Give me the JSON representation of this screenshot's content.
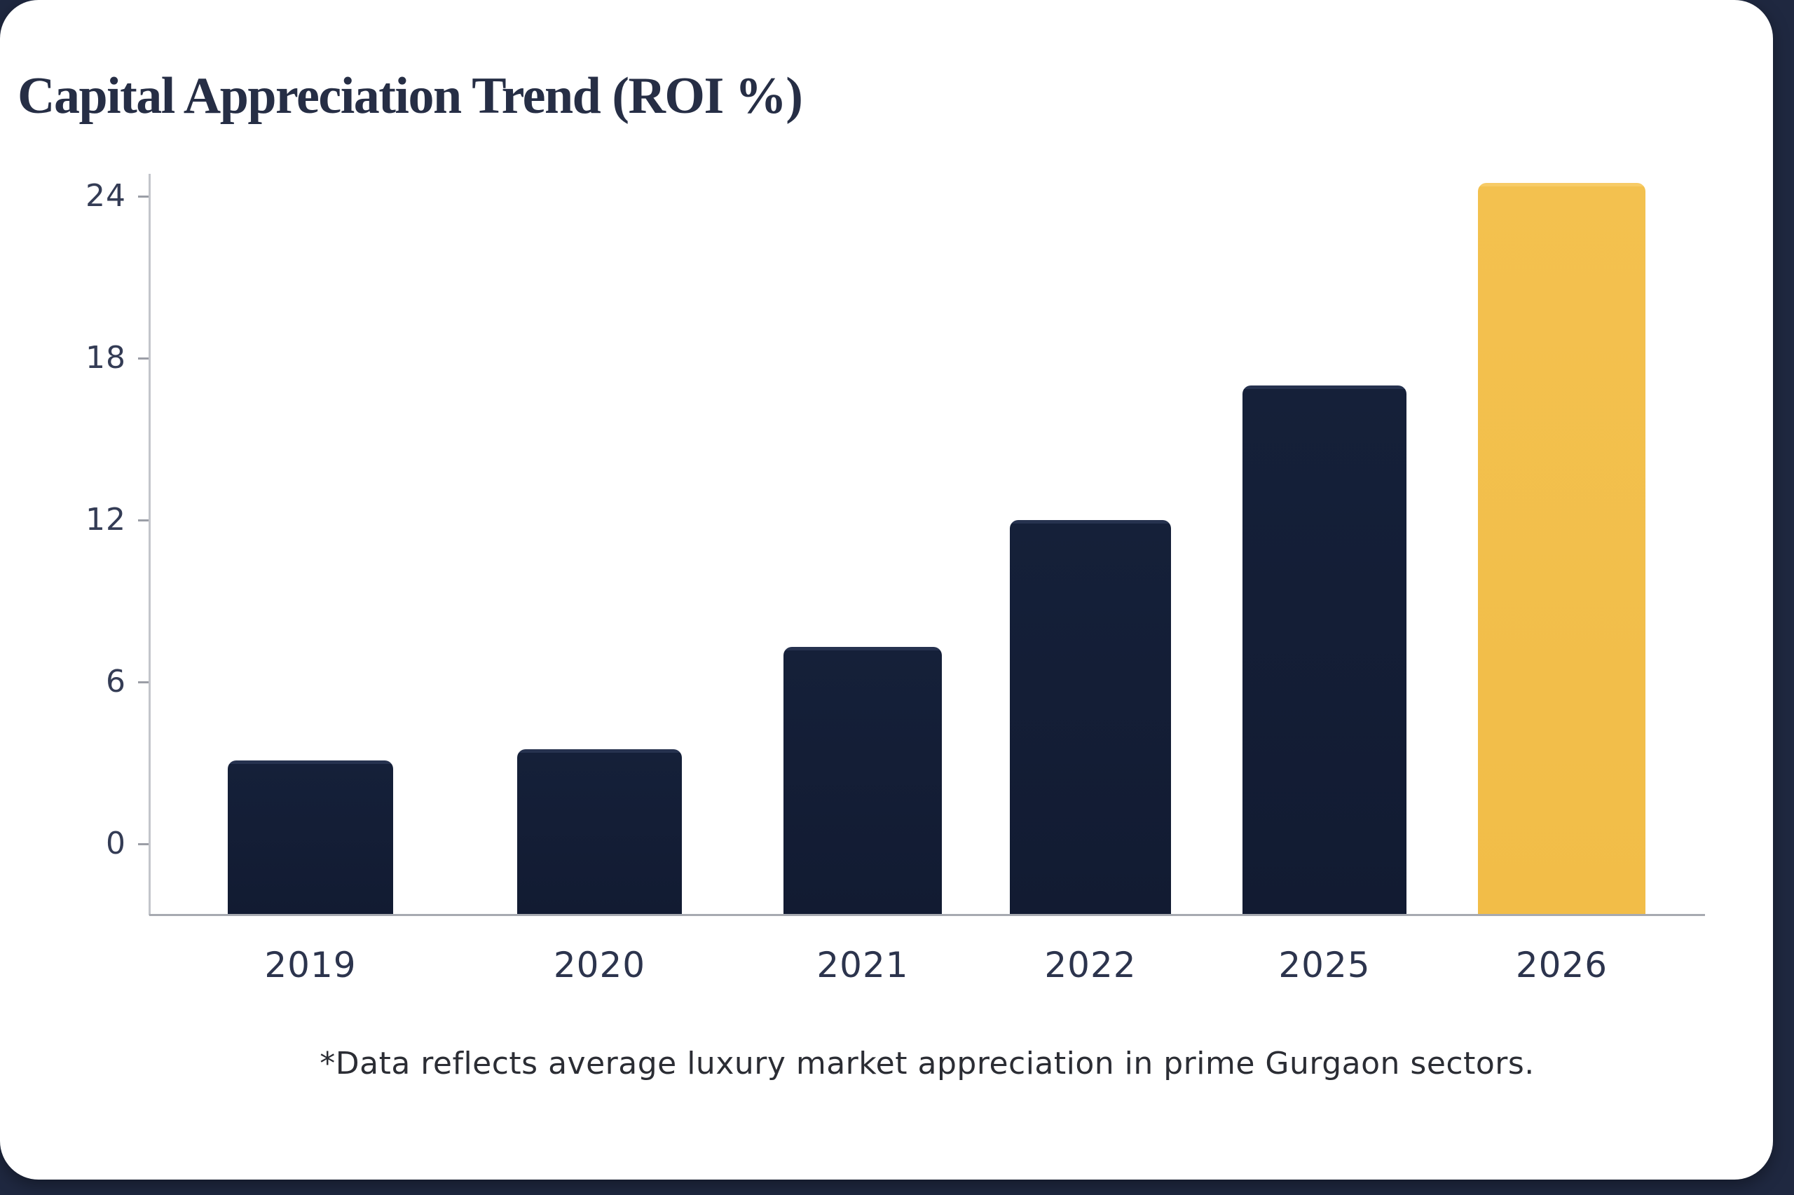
{
  "page": {
    "background_color": "#1f2840",
    "card_color": "#ffffff"
  },
  "chart": {
    "title": "Capital Appreciation Trend (ROI %)",
    "footnote": "*Data reflects average luxury market appreciation in prime Gurgaon sectors."
  },
  "chart_data": {
    "type": "bar",
    "title": "Capital Appreciation Trend (ROI %)",
    "categories": [
      "2019",
      "2020",
      "2021",
      "2022",
      "2025",
      "2026"
    ],
    "values": [
      3.1,
      3.5,
      7.3,
      12,
      17,
      24.5
    ],
    "xlabel": "",
    "ylabel": "",
    "y_ticks": [
      0,
      6,
      12,
      18,
      24
    ],
    "ylim": [
      -2.65,
      25.5
    ],
    "grid": false,
    "legend": false,
    "bar_color": "#152039",
    "highlight_index": 5,
    "highlight_color": "#f3c14f",
    "axis_color": "#c3c5cb",
    "annotation": "*Data reflects average luxury market appreciation in prime Gurgaon sectors."
  }
}
